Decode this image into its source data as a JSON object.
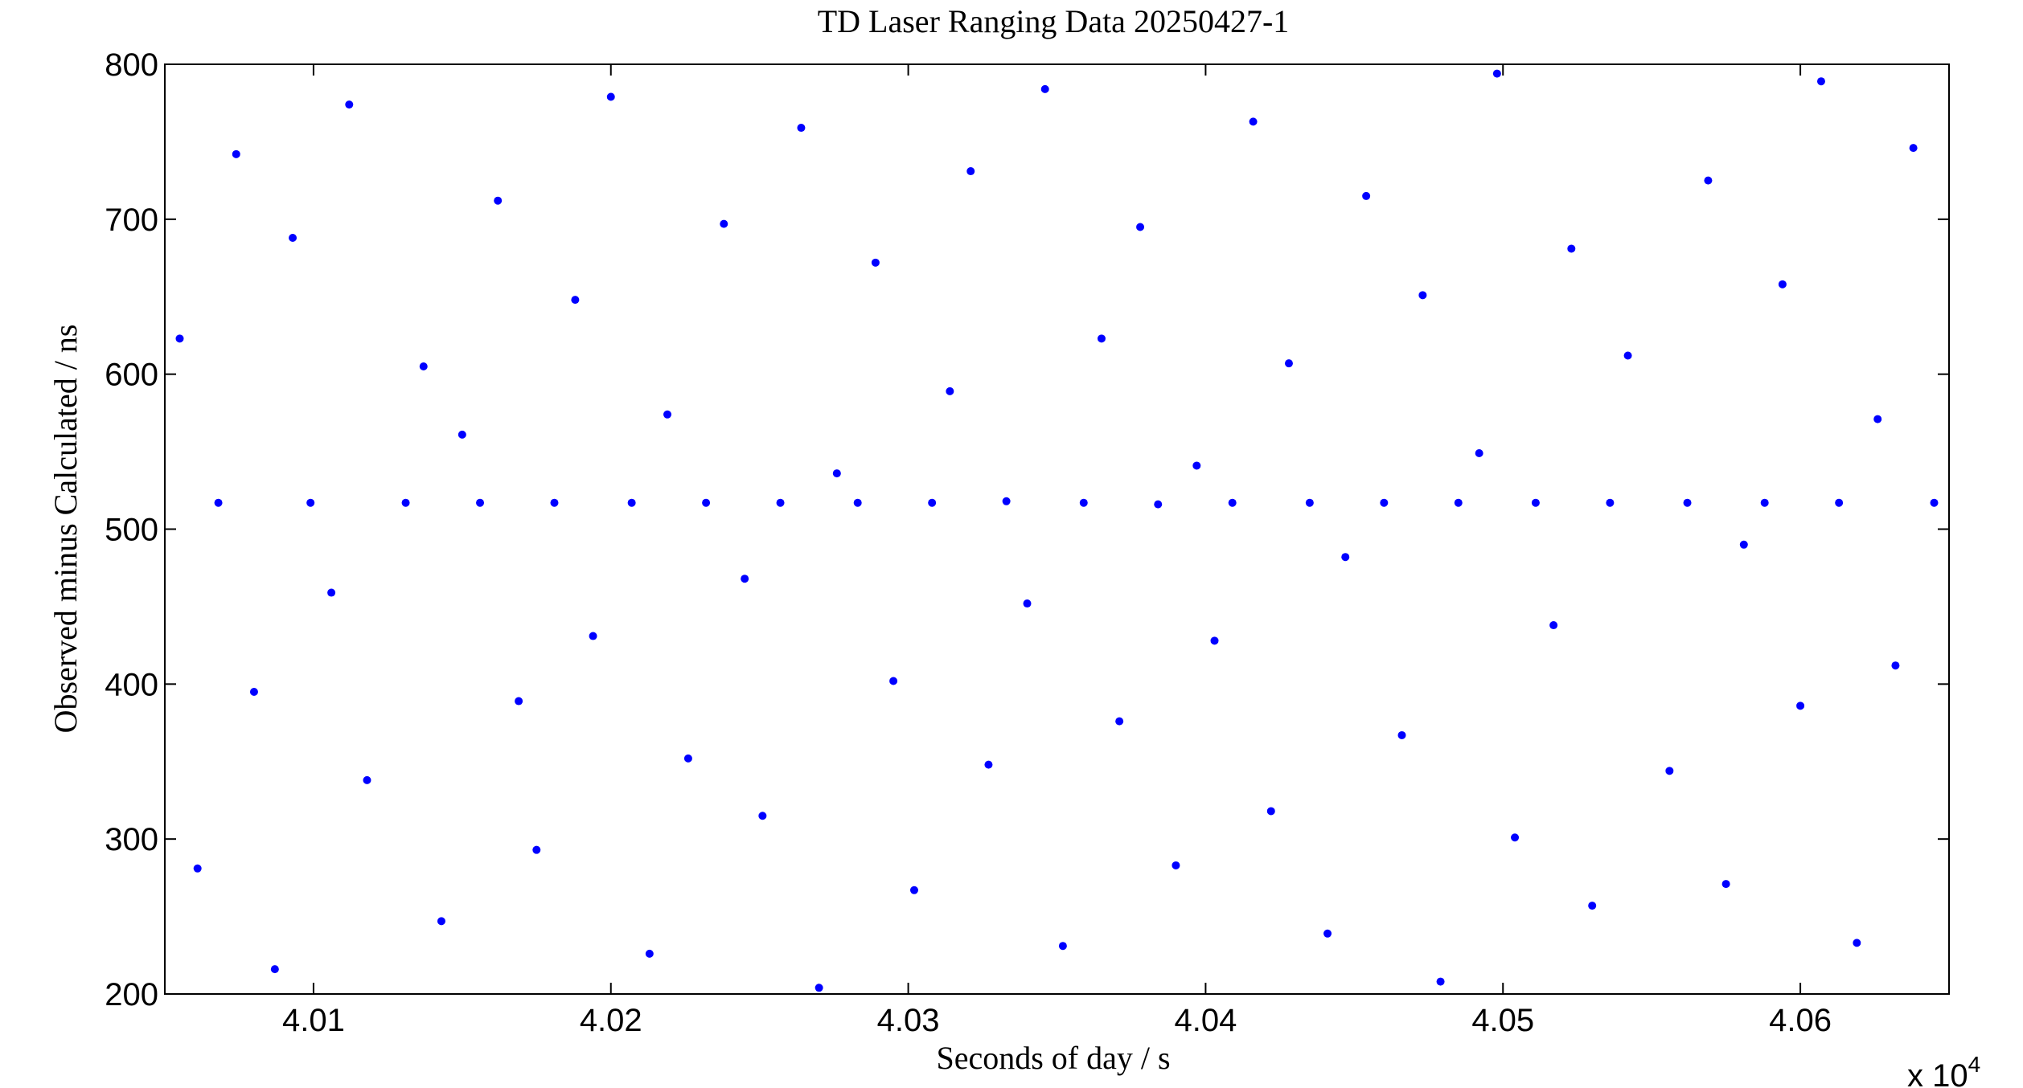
{
  "chart_data": {
    "type": "scatter",
    "title": "TD Laser Ranging Data 20250427-1",
    "x_label": "Seconds of day / s",
    "y_label": "Observed minus Calculated / ns",
    "x_multiplier": {
      "base": "x 10",
      "exponent": "4"
    },
    "color": "#0000ff",
    "x": [
      40055,
      40061,
      40068,
      40074,
      40080,
      40087,
      40093,
      40099,
      40106,
      40112,
      40118,
      40131,
      40137,
      40143,
      40150,
      40156,
      40162,
      40169,
      40175,
      40181,
      40188,
      40194,
      40200,
      40207,
      40213,
      40219,
      40226,
      40232,
      40238,
      40245,
      40251,
      40257,
      40264,
      40270,
      40276,
      40283,
      40289,
      40295,
      40302,
      40308,
      40314,
      40321,
      40327,
      40333,
      40340,
      40346,
      40352,
      40359,
      40365,
      40371,
      40378,
      40384,
      40390,
      40397,
      40403,
      40409,
      40416,
      40422,
      40428,
      40435,
      40441,
      40447,
      40454,
      40460,
      40466,
      40473,
      40479,
      40485,
      40492,
      40498,
      40504,
      40511,
      40517,
      40523,
      40530,
      40536,
      40542,
      40556,
      40562,
      40569,
      40575,
      40581,
      40588,
      40594,
      40600,
      40607,
      40613,
      40619,
      40626,
      40632,
      40638,
      40645
    ],
    "values": [
      623,
      281,
      517,
      742,
      395,
      216,
      688,
      517,
      459,
      774,
      338,
      517,
      605,
      247,
      561,
      517,
      712,
      389,
      293,
      517,
      648,
      431,
      779,
      517,
      226,
      574,
      352,
      517,
      697,
      468,
      315,
      517,
      759,
      204,
      536,
      517,
      672,
      402,
      267,
      517,
      589,
      731,
      348,
      518,
      452,
      784,
      231,
      517,
      623,
      376,
      695,
      516,
      283,
      541,
      428,
      517,
      763,
      318,
      607,
      517,
      239,
      482,
      715,
      517,
      367,
      651,
      208,
      517,
      549,
      794,
      301,
      517,
      438,
      681,
      257,
      517,
      612,
      344,
      517,
      725,
      271,
      490,
      517,
      658,
      386,
      789,
      517,
      233,
      571,
      412,
      746,
      517
    ],
    "xlim": [
      40050,
      40650
    ],
    "xticks": [
      {
        "value": 40100,
        "label": "4.01"
      },
      {
        "value": 40200,
        "label": "4.02"
      },
      {
        "value": 40300,
        "label": "4.03"
      },
      {
        "value": 40400,
        "label": "4.04"
      },
      {
        "value": 40500,
        "label": "4.05"
      },
      {
        "value": 40600,
        "label": "4.06"
      }
    ],
    "ylim": [
      200,
      800
    ],
    "yticks": [
      200,
      300,
      400,
      500,
      600,
      700,
      800
    ],
    "grid": false
  }
}
